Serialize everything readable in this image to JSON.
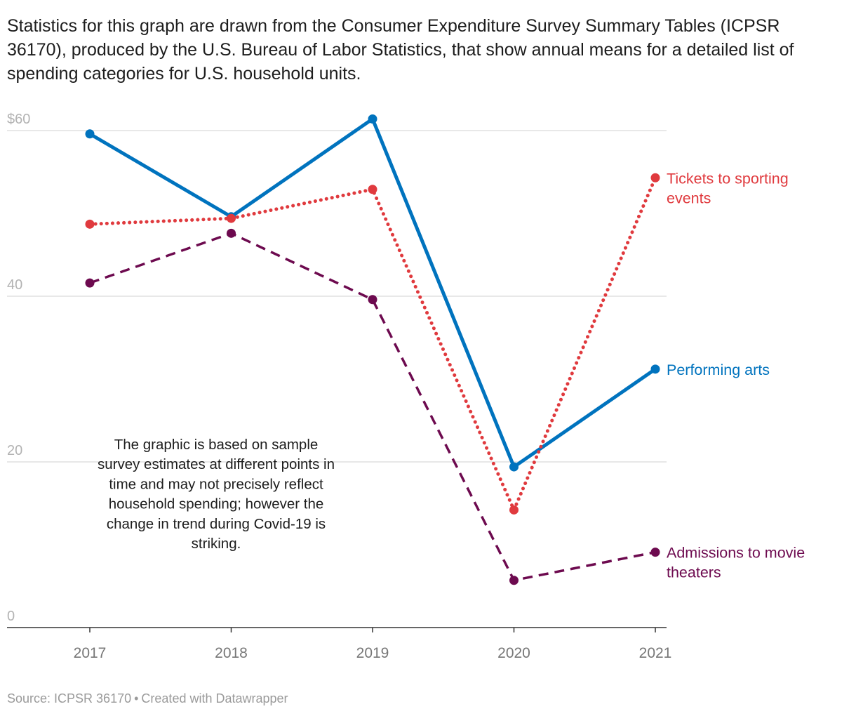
{
  "intro": "Statistics for this graph are drawn from the Consumer Expenditure Survey Summary Tables (ICPSR 36170), produced by the U.S. Bureau of Labor Statistics, that show annual means for a detailed list of spending categories for U.S. household units.",
  "chart_data": {
    "type": "line",
    "title": "",
    "xlabel": "",
    "ylabel": "",
    "x": [
      "2017",
      "2018",
      "2019",
      "2020",
      "2021"
    ],
    "ylim": [
      0,
      60
    ],
    "y_ticks": [
      {
        "value": 0,
        "label": "0"
      },
      {
        "value": 20,
        "label": "20"
      },
      {
        "value": 40,
        "label": "40"
      },
      {
        "value": 60,
        "label": "$60"
      }
    ],
    "grid": true,
    "series": [
      {
        "name": "Performing arts",
        "key": "performing",
        "color": "#0073be",
        "style": "solid",
        "values": [
          59.6,
          49.6,
          61.4,
          19.4,
          31.2
        ],
        "label_lines": [
          "Performing arts"
        ]
      },
      {
        "name": "Tickets to sporting events",
        "key": "sporting",
        "color": "#e03a3e",
        "style": "dotted",
        "values": [
          48.7,
          49.4,
          52.9,
          14.2,
          54.3
        ],
        "label_lines": [
          "Tickets to sporting",
          "events"
        ]
      },
      {
        "name": "Admissions to movie theaters",
        "key": "movie",
        "color": "#6d0a4f",
        "style": "dashed",
        "values": [
          41.6,
          47.6,
          39.6,
          5.7,
          9.1
        ],
        "label_lines": [
          "Admissions to movie",
          "theaters"
        ]
      }
    ],
    "annotation_lines": [
      "The graphic is based on sample",
      "survey estimates at different points in",
      "time and may not precisely reflect",
      "household spending; however the",
      "change in trend during Covid-19 is",
      "striking."
    ]
  },
  "footer": {
    "source": "Source: ICPSR 36170",
    "separator": "•",
    "credit": "Created with Datawrapper"
  }
}
